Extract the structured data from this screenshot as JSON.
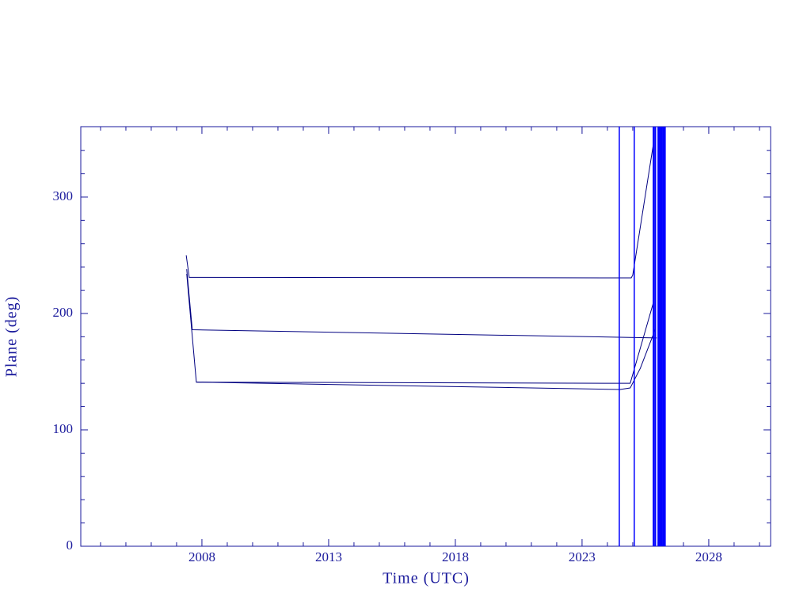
{
  "chart_data": {
    "type": "line",
    "xlabel": "Time (UTC)",
    "ylabel": "Plane (deg)",
    "xlim": [
      2003.22,
      2030.44
    ],
    "ylim": [
      0,
      360.5
    ],
    "xticks": [
      2008,
      2013,
      2018,
      2023,
      2028
    ],
    "xminorticks": [
      2004,
      2005,
      2006,
      2007,
      2009,
      2010,
      2011,
      2012,
      2014,
      2015,
      2016,
      2017,
      2019,
      2020,
      2021,
      2022,
      2024,
      2025,
      2026,
      2027,
      2029,
      2030
    ],
    "yticks": [
      0,
      100,
      200,
      300
    ],
    "yminorticks": [
      20,
      40,
      60,
      80,
      120,
      140,
      160,
      180,
      220,
      240,
      260,
      280,
      320,
      340
    ],
    "axis_color": "#1a1a9c",
    "series": [
      {
        "color": "#000080",
        "x": [
          2007.38,
          2007.5,
          2024.94,
          2025.0,
          2025.81
        ],
        "values": [
          250,
          231,
          230.6,
          233,
          345
        ]
      },
      {
        "color": "#000080",
        "x": [
          2007.4,
          2007.62,
          2025.95
        ],
        "values": [
          238,
          186,
          179
        ]
      },
      {
        "color": "#000080",
        "x": [
          2007.4,
          2007.78,
          2024.9,
          2025.81
        ],
        "values": [
          234,
          141,
          140,
          209
        ]
      },
      {
        "color": "#000080",
        "x": [
          2007.78,
          2024.5,
          2024.9,
          2025.3,
          2025.9
        ],
        "values": [
          141,
          134.7,
          136,
          153,
          187
        ]
      }
    ],
    "vlines": [
      2024.47,
      2025.06,
      2025.81,
      2025.85,
      2025.9,
      2026.0,
      2026.04,
      2026.08,
      2026.12,
      2026.16,
      2026.2,
      2026.24,
      2026.28
    ],
    "vline_color": "#0000ff"
  }
}
